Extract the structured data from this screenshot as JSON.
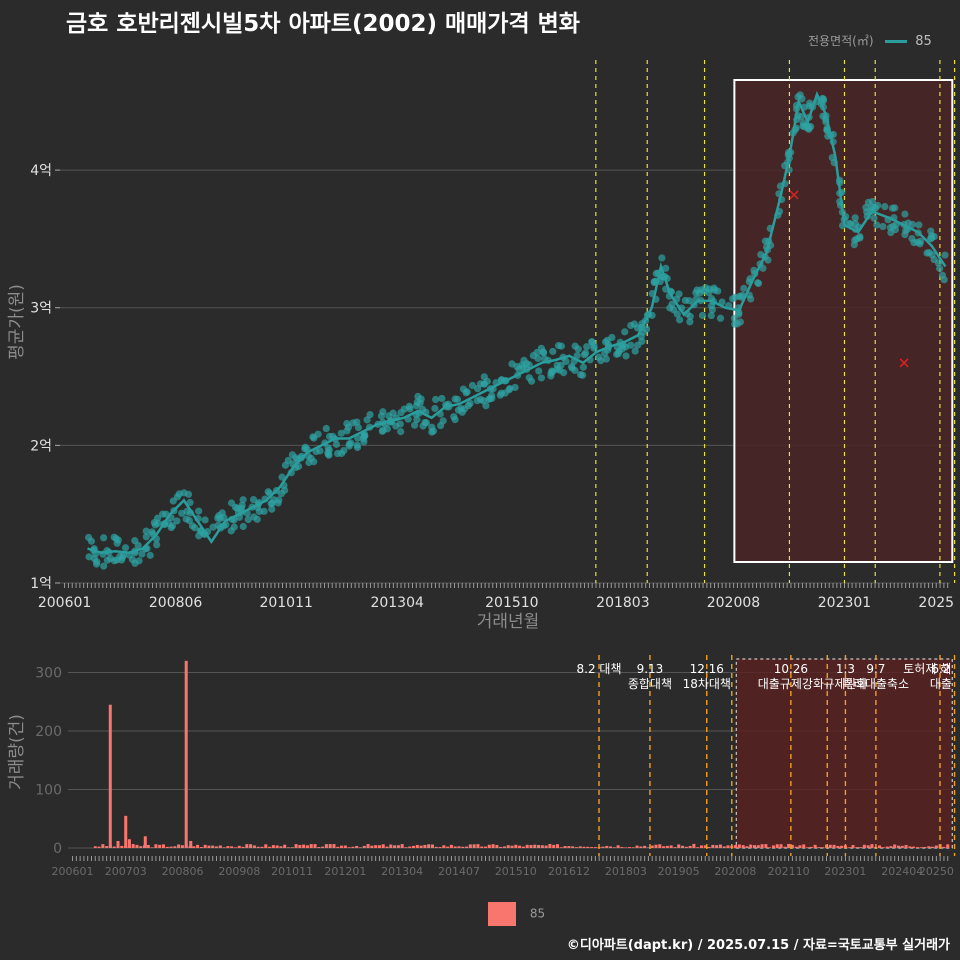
{
  "title": "금호 호반리젠시빌5차 아파트(2002) 매매가격 변화",
  "footer": "©디아파트(dapt.kr) / 2025.07.15 / 자료=국토교통부 실거래가",
  "legend_top": {
    "title": "전용면적(㎡)",
    "value": "85"
  },
  "legend_bottom": {
    "value": "85"
  },
  "colors": {
    "background": "#2b2b2b",
    "line": "#2a9d9d",
    "point": "#2fa3a3",
    "bar": "#f8766d",
    "policy_line": "#e8e23a",
    "highlight_fill": "#4a2424",
    "cross": "#e02020"
  },
  "chart_data": [
    {
      "type": "line",
      "ylabel": "평균가(원)",
      "xlabel": "거래년월",
      "ylim": [
        1,
        4.8
      ],
      "yticks": [
        {
          "v": 1,
          "label": "1억"
        },
        {
          "v": 2,
          "label": "2억"
        },
        {
          "v": 3,
          "label": "3억"
        },
        {
          "v": 4,
          "label": "4억"
        }
      ],
      "xticks": [
        {
          "t": 2006.0,
          "label": "200601"
        },
        {
          "t": 2008.42,
          "label": "200806"
        },
        {
          "t": 2010.83,
          "label": "201011"
        },
        {
          "t": 2013.25,
          "label": "201304"
        },
        {
          "t": 2015.75,
          "label": "201510"
        },
        {
          "t": 2018.17,
          "label": "201803"
        },
        {
          "t": 2020.58,
          "label": "202008"
        },
        {
          "t": 2023.0,
          "label": "202301"
        },
        {
          "t": 2025.0,
          "label": "2025"
        }
      ],
      "xlim": [
        2005.9,
        2025.3
      ],
      "series": [
        {
          "name": "85",
          "points": [
            [
              2006.5,
              1.25
            ],
            [
              2006.8,
              1.22
            ],
            [
              2007.1,
              1.23
            ],
            [
              2007.4,
              1.22
            ],
            [
              2007.7,
              1.25
            ],
            [
              2008.0,
              1.35
            ],
            [
              2008.3,
              1.5
            ],
            [
              2008.6,
              1.6
            ],
            [
              2008.9,
              1.45
            ],
            [
              2009.2,
              1.3
            ],
            [
              2009.5,
              1.45
            ],
            [
              2009.8,
              1.5
            ],
            [
              2010.1,
              1.55
            ],
            [
              2010.4,
              1.6
            ],
            [
              2010.7,
              1.7
            ],
            [
              2011.0,
              1.85
            ],
            [
              2011.3,
              1.95
            ],
            [
              2011.6,
              2.0
            ],
            [
              2011.9,
              2.05
            ],
            [
              2012.2,
              2.05
            ],
            [
              2012.5,
              2.1
            ],
            [
              2012.8,
              2.15
            ],
            [
              2013.1,
              2.18
            ],
            [
              2013.4,
              2.2
            ],
            [
              2013.7,
              2.25
            ],
            [
              2014.0,
              2.2
            ],
            [
              2014.3,
              2.28
            ],
            [
              2014.6,
              2.3
            ],
            [
              2014.9,
              2.35
            ],
            [
              2015.2,
              2.4
            ],
            [
              2015.5,
              2.45
            ],
            [
              2015.8,
              2.5
            ],
            [
              2016.1,
              2.55
            ],
            [
              2016.4,
              2.6
            ],
            [
              2016.7,
              2.62
            ],
            [
              2017.0,
              2.65
            ],
            [
              2017.3,
              2.6
            ],
            [
              2017.6,
              2.68
            ],
            [
              2017.9,
              2.72
            ],
            [
              2018.2,
              2.75
            ],
            [
              2018.5,
              2.8
            ],
            [
              2018.8,
              3.0
            ],
            [
              2019.0,
              3.3
            ],
            [
              2019.2,
              3.1
            ],
            [
              2019.5,
              2.95
            ],
            [
              2019.8,
              3.05
            ],
            [
              2020.1,
              3.05
            ],
            [
              2020.4,
              3.0
            ],
            [
              2020.7,
              2.98
            ],
            [
              2021.0,
              3.2
            ],
            [
              2021.3,
              3.4
            ],
            [
              2021.6,
              3.8
            ],
            [
              2021.8,
              4.1
            ],
            [
              2022.0,
              4.5
            ],
            [
              2022.2,
              4.35
            ],
            [
              2022.4,
              4.55
            ],
            [
              2022.6,
              4.4
            ],
            [
              2022.8,
              4.1
            ],
            [
              2023.0,
              3.6
            ],
            [
              2023.3,
              3.55
            ],
            [
              2023.6,
              3.7
            ],
            [
              2024.0,
              3.65
            ],
            [
              2024.3,
              3.6
            ],
            [
              2024.6,
              3.55
            ],
            [
              2024.9,
              3.45
            ],
            [
              2025.2,
              3.3
            ]
          ]
        }
      ],
      "policy_dates": [
        2017.58,
        2018.7,
        2019.95,
        2021.8,
        2023.0,
        2023.67,
        2025.08,
        2025.4
      ],
      "highlight": {
        "from": 2020.6,
        "to": 2025.35
      },
      "crosses": [
        [
          2021.9,
          3.82
        ],
        [
          2024.3,
          2.6
        ]
      ]
    },
    {
      "type": "bar",
      "ylabel": "거래량(건)",
      "ylim": [
        0,
        330
      ],
      "yticks": [
        {
          "v": 0,
          "label": "0"
        },
        {
          "v": 100,
          "label": "100"
        },
        {
          "v": 200,
          "label": "200"
        },
        {
          "v": 300,
          "label": "300"
        }
      ],
      "xlim": [
        2005.9,
        2025.3
      ],
      "xticks": [
        {
          "t": 2006.0,
          "label": "200601"
        },
        {
          "t": 2007.17,
          "label": "200703"
        },
        {
          "t": 2008.42,
          "label": "200806"
        },
        {
          "t": 2009.67,
          "label": "200908"
        },
        {
          "t": 2010.83,
          "label": "201011"
        },
        {
          "t": 2012.0,
          "label": "201201"
        },
        {
          "t": 2013.25,
          "label": "201304"
        },
        {
          "t": 2014.5,
          "label": "201407"
        },
        {
          "t": 2015.75,
          "label": "201510"
        },
        {
          "t": 2016.92,
          "label": "201612"
        },
        {
          "t": 2018.17,
          "label": "201803"
        },
        {
          "t": 2019.33,
          "label": "201905"
        },
        {
          "t": 2020.58,
          "label": "202008"
        },
        {
          "t": 2021.75,
          "label": "202110"
        },
        {
          "t": 2023.0,
          "label": "202301"
        },
        {
          "t": 2024.25,
          "label": "202404"
        },
        {
          "t": 2025.0,
          "label": "20250"
        }
      ],
      "series": [
        {
          "name": "85",
          "spikes": [
            [
              2006.83,
              245
            ],
            [
              2007.0,
              12
            ],
            [
              2007.17,
              55
            ],
            [
              2007.25,
              15
            ],
            [
              2007.6,
              20
            ],
            [
              2008.5,
              320
            ],
            [
              2008.6,
              12
            ]
          ]
        }
      ],
      "policy_dates": [
        2017.58,
        2018.7,
        2019.95,
        2020.5,
        2021.8,
        2022.6,
        2023.0,
        2023.67,
        2025.08,
        2025.4
      ],
      "policy_labels": [
        {
          "t": 2017.58,
          "lines": [
            "8.2 대책"
          ]
        },
        {
          "t": 2018.7,
          "lines": [
            "9.13",
            "종합대책"
          ]
        },
        {
          "t": 2019.95,
          "lines": [
            "12.16",
            "18차대책"
          ]
        },
        {
          "t": 2021.8,
          "lines": [
            "10.26",
            "대출규제강화"
          ]
        },
        {
          "t": 2023.0,
          "lines": [
            "1.3",
            "규제완화"
          ]
        },
        {
          "t": 2023.67,
          "lines": [
            "9.7",
            "특례대출축소"
          ]
        },
        {
          "t": 2024.8,
          "lines": [
            "토허제 해"
          ]
        },
        {
          "t": 2025.1,
          "lines": [
            "6.2",
            "대출"
          ]
        }
      ],
      "highlight": {
        "from": 2020.6,
        "to": 2025.35
      }
    }
  ]
}
